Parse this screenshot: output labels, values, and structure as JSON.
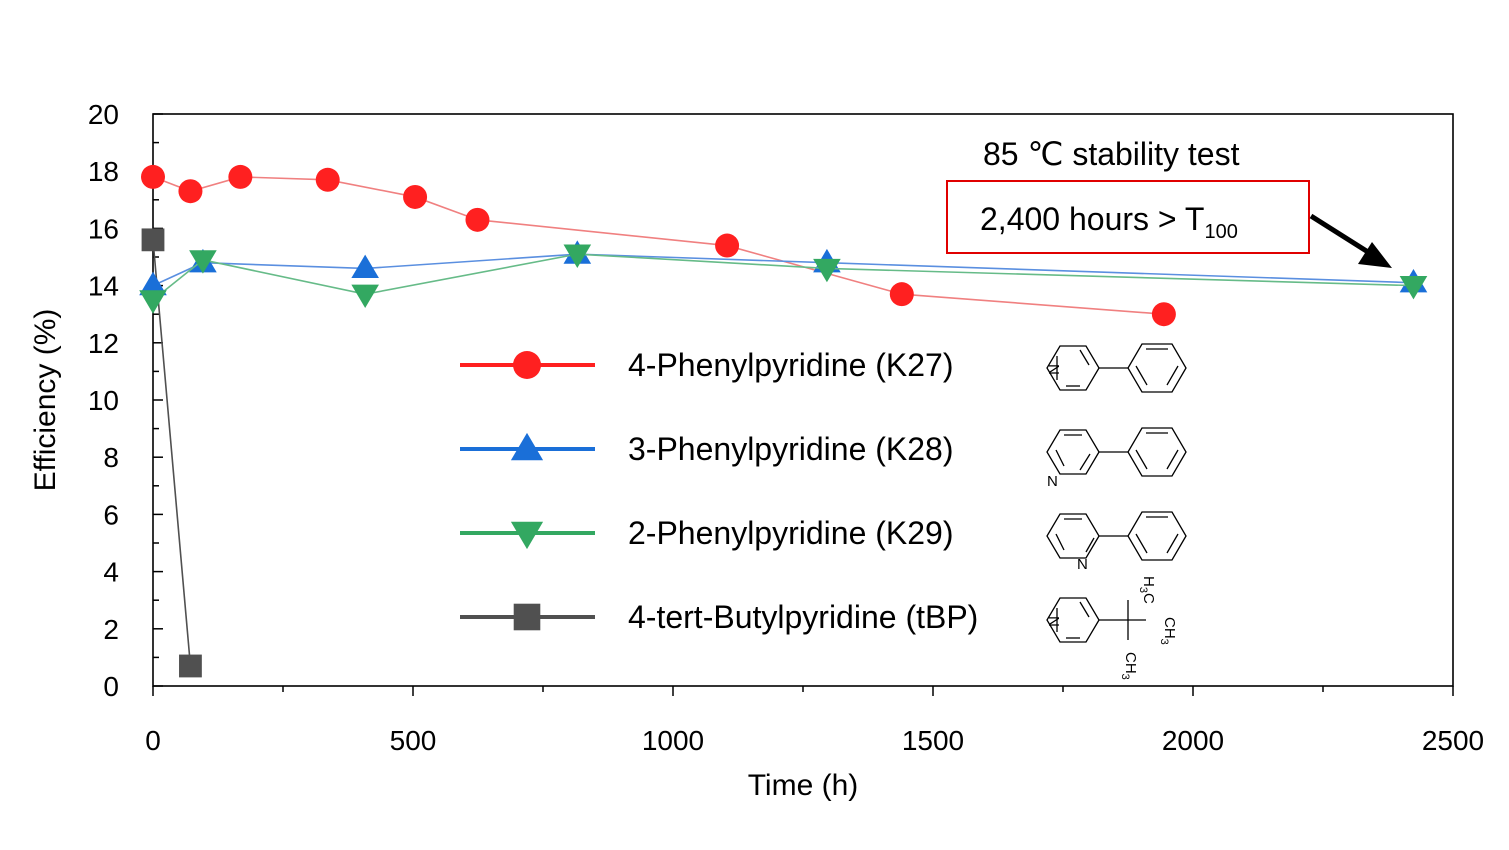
{
  "chart_data": {
    "type": "line",
    "title": "",
    "xlabel": "Time (h)",
    "ylabel": "Efficiency (%)",
    "xlim": [
      0,
      2500
    ],
    "ylim": [
      0,
      20
    ],
    "xticks": [
      0,
      500,
      1000,
      1500,
      2000,
      2500
    ],
    "yticks": [
      0,
      2,
      4,
      6,
      8,
      10,
      12,
      14,
      16,
      18,
      20
    ],
    "grid": false,
    "legend_position": "center",
    "series": [
      {
        "name": "4-Phenylpyridine (K27)",
        "color": "#ff2020",
        "line_color": "#f08080",
        "marker": "circle",
        "x": [
          0,
          72,
          168,
          336,
          504,
          624,
          1104,
          1440,
          1944
        ],
        "y": [
          17.8,
          17.3,
          17.8,
          17.7,
          17.1,
          16.3,
          15.4,
          13.7,
          13.0
        ]
      },
      {
        "name": "3-Phenylpyridine (K28)",
        "color": "#1a6fd8",
        "line_color": "#5a8fe0",
        "marker": "triangle-up",
        "x": [
          0,
          96,
          408,
          816,
          1296,
          2424
        ],
        "y": [
          14.0,
          14.8,
          14.6,
          15.1,
          14.8,
          14.1
        ]
      },
      {
        "name": "2-Phenylpyridine (K29)",
        "color": "#33a861",
        "line_color": "#66bb88",
        "marker": "triangle-down",
        "x": [
          0,
          96,
          408,
          816,
          1296,
          2424
        ],
        "y": [
          13.5,
          14.9,
          13.7,
          15.1,
          14.6,
          14.0
        ]
      },
      {
        "name": "4-tert-Butylpyridine (tBP)",
        "color": "#505050",
        "line_color": "#505050",
        "marker": "square",
        "x": [
          0,
          72
        ],
        "y": [
          15.6,
          0.7
        ]
      }
    ],
    "annotations": {
      "header": "85 ℃ stability test",
      "box_text": "2,400 hours > T",
      "box_subscript": "100",
      "box_color": "#e00000"
    },
    "structure_labels": {
      "n": "N",
      "h3c_h": "H",
      "h3c_3": "3",
      "h3c_c": "C",
      "ch3_ch": "CH",
      "ch3_3": "3"
    }
  }
}
